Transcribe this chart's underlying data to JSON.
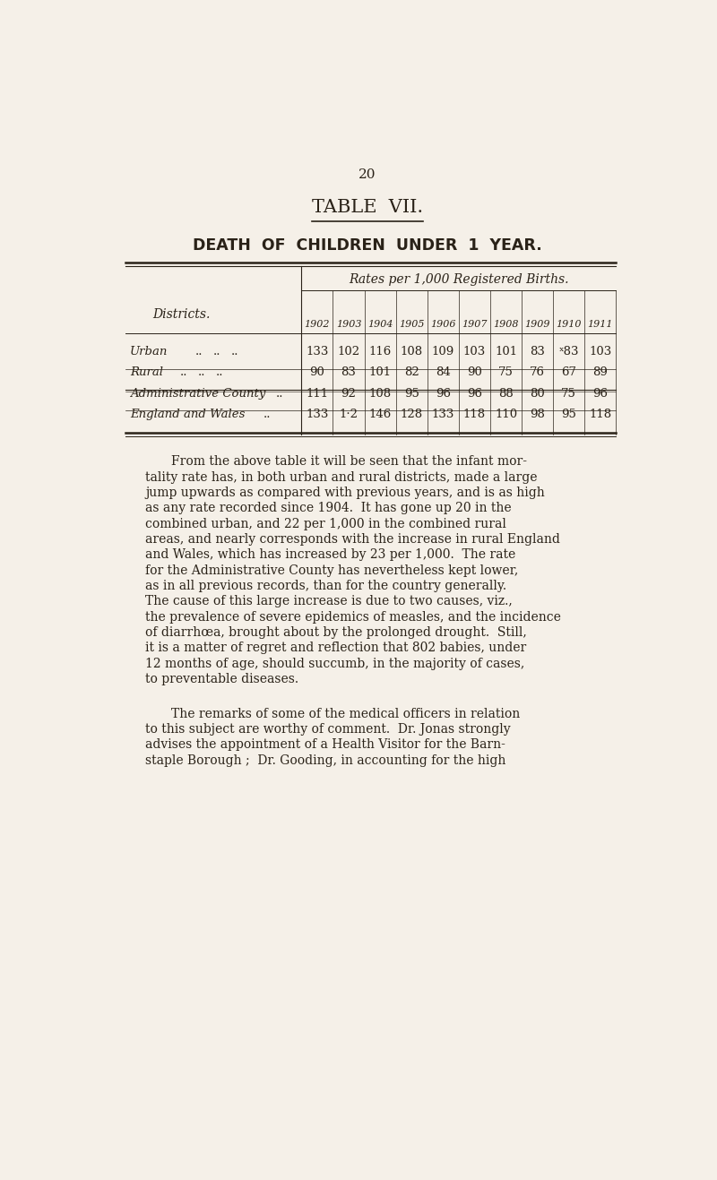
{
  "page_number": "20",
  "table_title": "TABLE  VII.",
  "subtitle": "DEATH  OF  CHILDREN  UNDER  1  YEAR.",
  "header_rates": "Rates per 1,000 Registered Births.",
  "col_label": "Districts.",
  "years": [
    "1902",
    "1903",
    "1904",
    "1905",
    "1906",
    "1907",
    "1908",
    "1909",
    "1910",
    "1911"
  ],
  "rows": [
    {
      "label": "Urban",
      "dots": "..   ..   ..",
      "values": [
        "133",
        "102",
        "116",
        "108",
        "109",
        "103",
        "101",
        "83",
        "ˣ83",
        "103"
      ]
    },
    {
      "label": "Rural",
      "dots": "..   ..   ..",
      "values": [
        "90",
        "83",
        "101",
        "82",
        "84",
        "90",
        "75",
        "76",
        "67",
        "89"
      ]
    },
    {
      "label": "Administrative County",
      "dots": "..",
      "values": [
        "111",
        "92",
        "108",
        "95",
        "96",
        "96",
        "88",
        "80",
        "75",
        "96"
      ]
    },
    {
      "label": "England and Wales",
      "dots": "  ..",
      "values": [
        "133",
        "1·2",
        "146",
        "128",
        "133",
        "118",
        "110",
        "98",
        "95",
        "118"
      ]
    }
  ],
  "body_text": [
    "From the above table it will be seen that the infant mor-",
    "tality rate has, in both urban and rural districts, made a large",
    "jump upwards as compared with previous years, and is as high",
    "as any rate recorded since 1904.  It has gone up 20 in the",
    "combined urban, and 22 per 1,000 in the combined rural",
    "areas, and nearly corresponds with the increase in rural England",
    "and Wales, which has increased by 23 per 1,000.  The rate",
    "for the Administrative County has nevertheless kept lower,",
    "as in all previous records, than for the country generally.",
    "The cause of this large increase is due to two causes, viz.,",
    "the prevalence of severe epidemics of measles, and the incidence",
    "of diarrhœa, brought about by the prolonged drought.  Still,",
    "it is a matter of regret and reflection that 802 babies, under",
    "12 months of age, should succumb, in the majority of cases,",
    "to preventable diseases."
  ],
  "body_text2": [
    "The remarks of some of the medical officers in relation",
    "to this subject are worthy of comment.  Dr. Jonas strongly",
    "advises the appointment of a Health Visitor for the Barn-",
    "staple Borough ;  Dr. Gooding, in accounting for the high"
  ],
  "bg_color": "#f5f0e8",
  "text_color": "#2a2218"
}
